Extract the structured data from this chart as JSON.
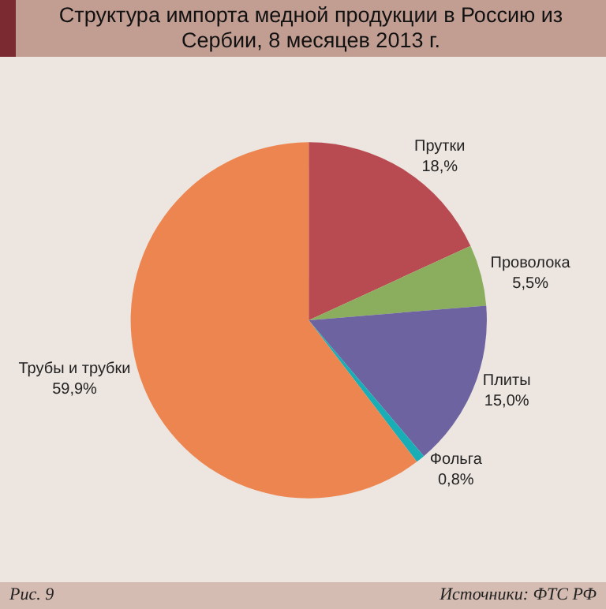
{
  "chart_data": {
    "type": "pie",
    "title": "Структура импорта медной продукции в Россию из Сербии, 8 месяцев 2013 г.",
    "categories": [
      "Прутки",
      "Проволока",
      "Плиты",
      "Фольга",
      "Трубы и трубки"
    ],
    "values": [
      18,
      5.5,
      15.0,
      0.8,
      59.9
    ],
    "value_labels": [
      "18,%",
      "5,5%",
      "15,0%",
      "0,8%",
      "59,9%"
    ],
    "colors": [
      "#b84b52",
      "#8aad5e",
      "#6d63a1",
      "#19adb5",
      "#ec8550"
    ],
    "legend": false,
    "annotations": [
      "Рис. 9",
      "Источники: ФТС РФ"
    ]
  }
}
